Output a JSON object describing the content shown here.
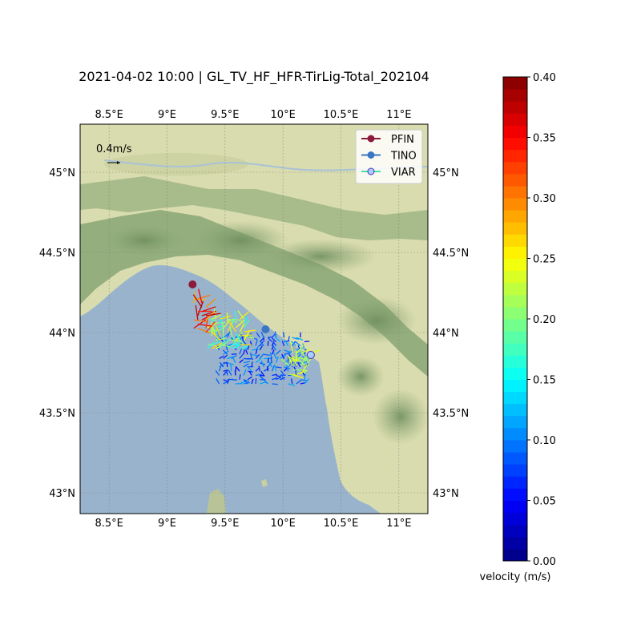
{
  "title": "2021-04-02 10:00 | GL_TV_HF_HFR-TirLig-Total_202104",
  "map": {
    "lon_range": [
      8.25,
      11.25
    ],
    "lat_range": [
      42.87,
      45.3
    ],
    "lon_ticks": [
      {
        "value": 8.5,
        "label": "8.5°E"
      },
      {
        "value": 9.0,
        "label": "9°E"
      },
      {
        "value": 9.5,
        "label": "9.5°E"
      },
      {
        "value": 10.0,
        "label": "10°E"
      },
      {
        "value": 10.5,
        "label": "10.5°E"
      },
      {
        "value": 11.0,
        "label": "11°E"
      }
    ],
    "lat_ticks": [
      {
        "value": 45.0,
        "label": "45°N"
      },
      {
        "value": 44.5,
        "label": "44.5°N"
      },
      {
        "value": 44.0,
        "label": "44°N"
      },
      {
        "value": 43.5,
        "label": "43.5°N"
      },
      {
        "value": 43.0,
        "label": "43°N"
      }
    ],
    "colors": {
      "sea": "#99b3cc",
      "land": "#d9dcae",
      "mountain": "#8da878",
      "grid": "#7f7f7f"
    }
  },
  "quiver_key": {
    "label": "0.4m/s",
    "value": 0.4
  },
  "legend": [
    {
      "name": "PFIN",
      "line_color": "#8c1a3c",
      "marker_color": "#8c1a3c",
      "edge_color": "#8c1a3c"
    },
    {
      "name": "TINO",
      "line_color": "#3b75c4",
      "marker_color": "#3b75c4",
      "edge_color": "#3b75c4"
    },
    {
      "name": "VIAR",
      "line_color": "#48e3a0",
      "marker_color": "#a6d1ff",
      "edge_color": "#4b2ab8"
    }
  ],
  "stations": [
    {
      "name": "PFIN",
      "lon": 9.22,
      "lat": 44.3
    },
    {
      "name": "TINO",
      "lon": 9.85,
      "lat": 44.02
    },
    {
      "name": "VIAR",
      "lon": 10.24,
      "lat": 43.86
    }
  ],
  "colorbar": {
    "label": "velocity (m/s)",
    "min": 0.0,
    "max": 0.4,
    "ticks": [
      {
        "value": 0.0,
        "label": "0.00"
      },
      {
        "value": 0.05,
        "label": "0.05"
      },
      {
        "value": 0.1,
        "label": "0.10"
      },
      {
        "value": 0.15,
        "label": "0.15"
      },
      {
        "value": 0.2,
        "label": "0.20"
      },
      {
        "value": 0.25,
        "label": "0.25"
      },
      {
        "value": 0.3,
        "label": "0.30"
      },
      {
        "value": 0.35,
        "label": "0.35"
      },
      {
        "value": 0.4,
        "label": "0.40"
      }
    ]
  },
  "current_field": {
    "description_units": "lon/lat degrees, speed m/s",
    "regions": [
      {
        "lon": [
          9.45,
          10.2
        ],
        "lat": [
          43.68,
          43.98
        ],
        "speed": [
          0.05,
          0.12
        ]
      },
      {
        "lon": [
          9.35,
          9.7
        ],
        "lat": [
          43.9,
          44.1
        ],
        "speed": [
          0.15,
          0.27
        ]
      },
      {
        "lon": [
          9.23,
          9.35
        ],
        "lat": [
          44.0,
          44.21
        ],
        "speed": [
          0.28,
          0.38
        ]
      },
      {
        "lon": [
          10.05,
          10.25
        ],
        "lat": [
          43.74,
          43.88
        ],
        "speed": [
          0.2,
          0.26
        ]
      }
    ]
  }
}
